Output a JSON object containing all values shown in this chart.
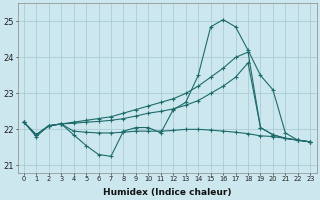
{
  "xlabel": "Humidex (Indice chaleur)",
  "bg_color": "#cce8ee",
  "grid_color": "#aaccd4",
  "line_color": "#1e6b6b",
  "xlim": [
    -0.5,
    23.5
  ],
  "ylim": [
    20.8,
    25.5
  ],
  "xticks": [
    0,
    1,
    2,
    3,
    4,
    5,
    6,
    7,
    8,
    9,
    10,
    11,
    12,
    13,
    14,
    15,
    16,
    17,
    18,
    19,
    20,
    21,
    22,
    23
  ],
  "yticks": [
    21,
    22,
    23,
    24,
    25
  ],
  "series1": [
    22.2,
    21.8,
    22.1,
    22.15,
    21.85,
    21.55,
    21.3,
    21.25,
    21.95,
    22.05,
    22.05,
    21.9,
    22.55,
    22.75,
    23.5,
    24.85,
    25.05,
    24.85,
    24.2,
    23.5,
    23.1,
    21.9,
    21.7,
    21.65
  ],
  "series2": [
    22.2,
    21.85,
    22.1,
    22.15,
    22.2,
    22.25,
    22.3,
    22.35,
    22.45,
    22.55,
    22.65,
    22.75,
    22.85,
    23.0,
    23.2,
    23.45,
    23.7,
    24.0,
    24.15,
    22.05,
    21.85,
    21.75,
    21.7,
    21.65
  ],
  "series3": [
    22.2,
    21.85,
    22.1,
    22.15,
    22.17,
    22.2,
    22.22,
    22.25,
    22.3,
    22.37,
    22.45,
    22.5,
    22.57,
    22.67,
    22.8,
    23.0,
    23.2,
    23.45,
    23.85,
    22.05,
    21.85,
    21.75,
    21.7,
    21.65
  ],
  "series4": [
    22.2,
    21.85,
    22.1,
    22.15,
    21.95,
    21.92,
    21.9,
    21.9,
    21.92,
    21.95,
    21.95,
    21.95,
    21.97,
    22.0,
    22.0,
    21.98,
    21.95,
    21.92,
    21.88,
    21.82,
    21.8,
    21.75,
    21.7,
    21.65
  ]
}
